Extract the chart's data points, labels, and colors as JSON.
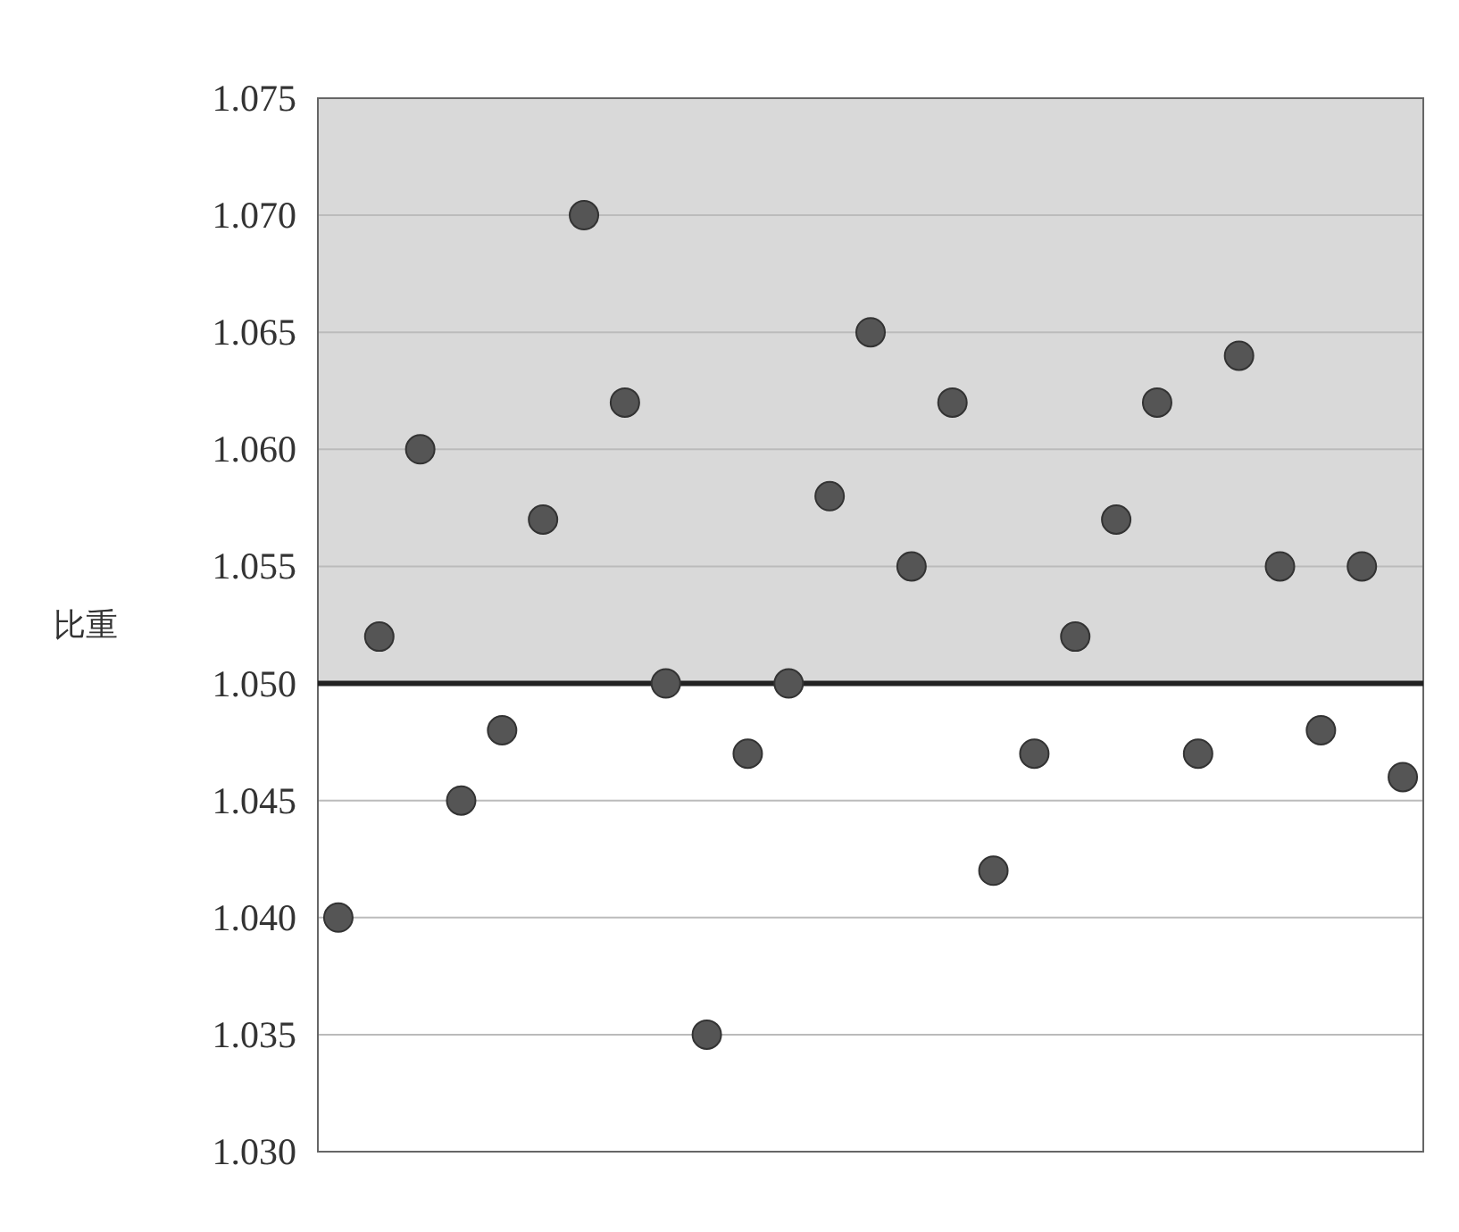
{
  "chart_data": {
    "type": "scatter",
    "ylabel": "比重",
    "categories": [
      null,
      null,
      null,
      null,
      null,
      null,
      null,
      null,
      null,
      null,
      null,
      null,
      null,
      null,
      null,
      null,
      null,
      null,
      null,
      null,
      null,
      null,
      null,
      null,
      null,
      null,
      null
    ],
    "values": [
      1.04,
      1.052,
      1.06,
      1.045,
      1.048,
      1.057,
      1.07,
      1.062,
      1.05,
      1.035,
      1.047,
      1.05,
      1.058,
      1.065,
      1.055,
      1.062,
      1.042,
      1.047,
      1.052,
      1.057,
      1.062,
      1.047,
      1.064,
      1.055,
      1.048,
      1.055,
      1.046
    ],
    "color": "#555555",
    "marker": "circle",
    "ylim": [
      1.03,
      1.075
    ],
    "yticks": [
      {
        "value": 1.03,
        "label": "1.030"
      },
      {
        "value": 1.035,
        "label": "1.035"
      },
      {
        "value": 1.04,
        "label": "1.040"
      },
      {
        "value": 1.045,
        "label": "1.045"
      },
      {
        "value": 1.05,
        "label": "1.050"
      },
      {
        "value": 1.055,
        "label": "1.055"
      },
      {
        "value": 1.06,
        "label": "1.060"
      },
      {
        "value": 1.065,
        "label": "1.065"
      },
      {
        "value": 1.07,
        "label": "1.070"
      },
      {
        "value": 1.075,
        "label": "1.075"
      }
    ],
    "grid": "y",
    "bands": [
      {
        "axis": "y",
        "from": 1.05,
        "to": 1.075,
        "color": "#d9d9d9"
      }
    ],
    "ref_lines": [
      {
        "axis": "y",
        "value": 1.05,
        "color": "#222222",
        "line_style": "solid"
      }
    ]
  }
}
